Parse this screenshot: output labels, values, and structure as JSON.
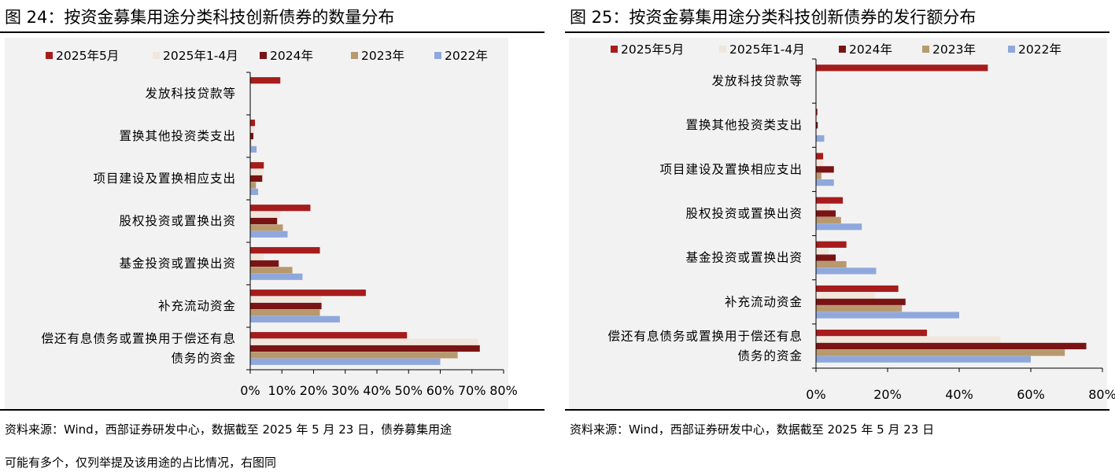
{
  "colors": {
    "2025年5月": "#a61c1c",
    "2025年1-4月": "#f0e6dc",
    "2024年": "#7a1414",
    "2023年": "#b8996e",
    "2022年": "#8fa8dc",
    "axis": "#000000",
    "plot_background": "#f2f2f2"
  },
  "figures": [
    {
      "title": "图 24：按资金募集用途分类科技创新债券的数量分布",
      "source_lines": [
        "资料来源：Wind，西部证券研发中心，数据截至 2025 年 5 月 23 日，债券募集用途",
        "可能有多个，仅列举提及该用途的占比情况，右图同"
      ]
    },
    {
      "title": "图 25：按资金募集用途分类科技创新债券的发行额分布",
      "source_lines": [
        "资料来源：Wind，西部证券研发中心，数据截至 2025 年 5 月 23 日"
      ]
    }
  ],
  "chart_data": [
    {
      "type": "bar",
      "orientation": "horizontal",
      "legend_position": "top",
      "grid": false,
      "categories": [
        "发放科技贷款等",
        "置换其他投资类支出",
        "项目建设及置换相应支出",
        "股权投资或置换出资",
        "基金投资或置换出资",
        "补充流动资金",
        "偿还有息债务或置换用于偿还有息债务的资金"
      ],
      "category_label_lines": [
        [
          "发放科技贷款等"
        ],
        [
          "置换其他投资类支出"
        ],
        [
          "项目建设及置换相应支出"
        ],
        [
          "股权投资或置换出资"
        ],
        [
          "基金投资或置换出资"
        ],
        [
          "补充流动资金"
        ],
        [
          "偿还有息债务或置换用于偿还有息",
          "债务的资金"
        ]
      ],
      "xlim": [
        0,
        80
      ],
      "xticks": [
        0,
        10,
        20,
        30,
        40,
        50,
        60,
        70,
        80
      ],
      "xtick_labels": [
        "0%",
        "10%",
        "20%",
        "30%",
        "40%",
        "50%",
        "60%",
        "70%",
        "80%"
      ],
      "series": [
        {
          "name": "2025年5月",
          "values": [
            9.5,
            1.5,
            4.3,
            19,
            22,
            36.5,
            49.5
          ]
        },
        {
          "name": "2025年1-4月",
          "values": [
            0,
            1.4,
            4.2,
            9.5,
            4.2,
            22.5,
            72
          ]
        },
        {
          "name": "2024年",
          "values": [
            0,
            1.0,
            3.8,
            8.5,
            9.0,
            22.5,
            72.5
          ]
        },
        {
          "name": "2023年",
          "values": [
            0,
            0.3,
            1.8,
            10.3,
            13.3,
            22,
            65.5
          ]
        },
        {
          "name": "2022年",
          "values": [
            0,
            2.0,
            2.5,
            11.8,
            16.5,
            28.3,
            60
          ]
        }
      ]
    },
    {
      "type": "bar",
      "orientation": "horizontal",
      "legend_position": "top",
      "grid": false,
      "categories": [
        "发放科技贷款等",
        "置换其他投资类支出",
        "项目建设及置换相应支出",
        "股权投资或置换出资",
        "基金投资或置换出资",
        "补充流动资金",
        "偿还有息债务或置换用于偿还有息债务的资金"
      ],
      "category_label_lines": [
        [
          "发放科技贷款等"
        ],
        [
          "置换其他投资类支出"
        ],
        [
          "项目建设及置换相应支出"
        ],
        [
          "股权投资或置换出资"
        ],
        [
          "基金投资或置换出资"
        ],
        [
          "补充流动资金"
        ],
        [
          "偿还有息债务或置换用于偿还有息",
          "债务的资金"
        ]
      ],
      "xlim": [
        0,
        80
      ],
      "xticks": [
        0,
        20,
        40,
        60,
        80
      ],
      "xtick_labels": [
        "0%",
        "20%",
        "40%",
        "60%",
        "80%"
      ],
      "series": [
        {
          "name": "2025年5月",
          "values": [
            48,
            0.4,
            2,
            7.5,
            8.5,
            23,
            31
          ]
        },
        {
          "name": "2025年1-4月",
          "values": [
            0,
            0.3,
            2,
            4,
            3.5,
            16.5,
            51.5
          ]
        },
        {
          "name": "2024年",
          "values": [
            0,
            0.5,
            5,
            5.5,
            5.5,
            25,
            75.5
          ]
        },
        {
          "name": "2023年",
          "values": [
            0,
            0,
            1.5,
            7,
            8.5,
            24,
            69.5
          ]
        },
        {
          "name": "2022年",
          "values": [
            0,
            2.3,
            5,
            12.8,
            16.8,
            40,
            60
          ]
        }
      ]
    }
  ]
}
